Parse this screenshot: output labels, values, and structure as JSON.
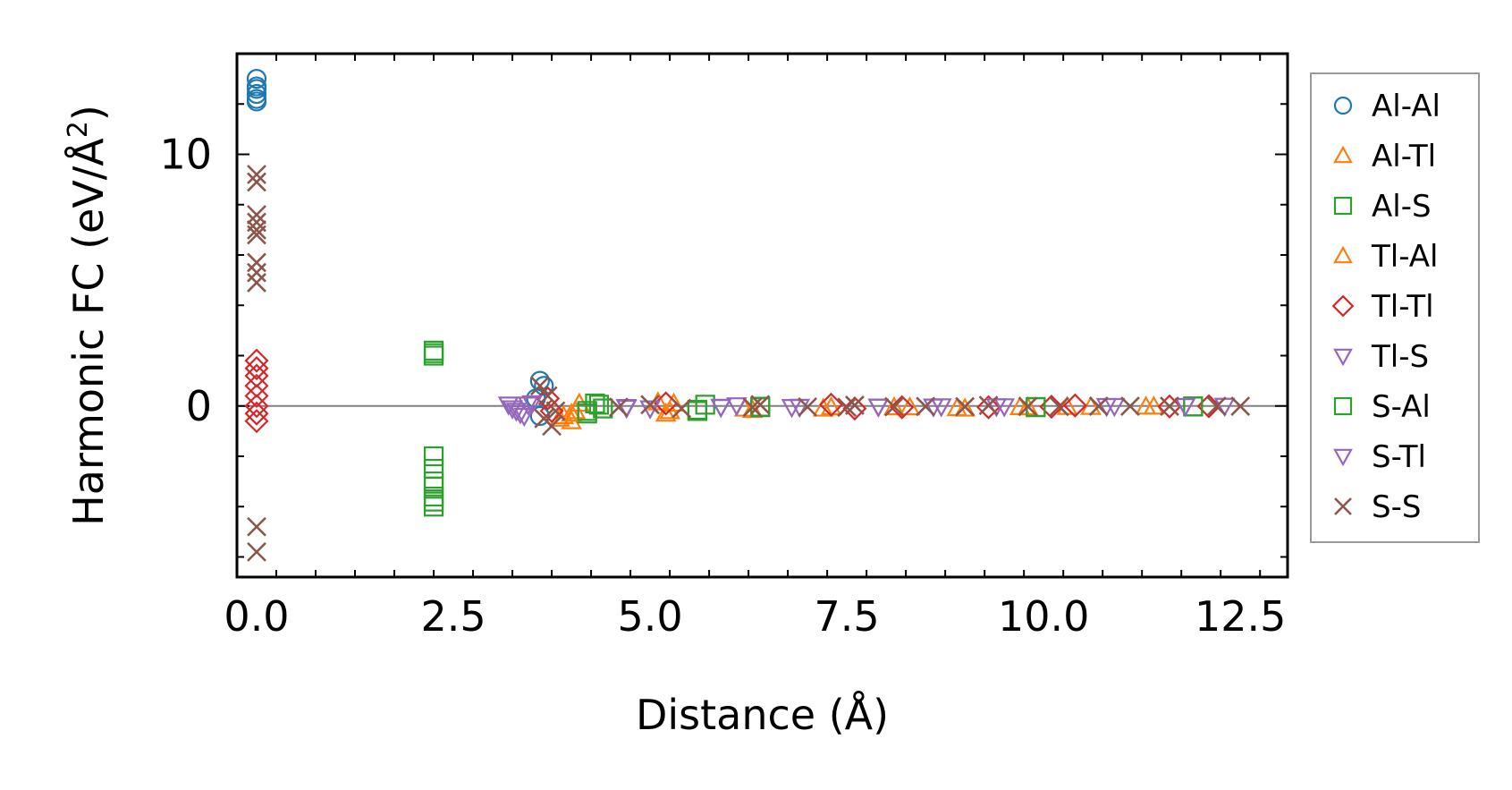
{
  "chart_data": {
    "type": "scatter",
    "xlabel": "Distance (Å)",
    "ylabel_main": "Harmonic FC (eV/Å",
    "ylabel_sup": "2",
    "ylabel_end": ")",
    "xlim": [
      -0.25,
      13.1
    ],
    "ylim": [
      -6.8,
      14.0
    ],
    "x_ticks": [
      0.0,
      2.5,
      5.0,
      7.5,
      10.0,
      12.5
    ],
    "x_tick_labels": [
      "0.0",
      "2.5",
      "5.0",
      "7.5",
      "10.0",
      "12.5"
    ],
    "y_ticks": [
      0,
      10
    ],
    "y_tick_labels": [
      "0",
      "10"
    ],
    "zero_line": true,
    "legend_position": "right",
    "series": [
      {
        "name": "Al-Al",
        "marker": "circle",
        "color": "#1f77b4",
        "x": [
          0,
          0,
          0,
          0,
          0,
          0,
          3.6,
          3.65,
          3.55,
          3.6
        ],
        "y": [
          13.0,
          12.7,
          12.4,
          12.1,
          12.2,
          12.6,
          1.0,
          0.8,
          0.3,
          -0.4
        ]
      },
      {
        "name": "Al-Tl",
        "marker": "triangle-up",
        "color": "#ff7f0e",
        "x": [
          3.9,
          4.0,
          4.05,
          4.1,
          5.2,
          5.3,
          6.3,
          7.2,
          8.3,
          9.0,
          9.8,
          10.6,
          11.3
        ],
        "y": [
          -0.4,
          -0.6,
          -0.2,
          0.1,
          -0.3,
          0.1,
          -0.15,
          -0.1,
          -0.05,
          -0.1,
          -0.05,
          -0.03,
          -0.02
        ]
      },
      {
        "name": "Al-S",
        "marker": "square",
        "color": "#2ca02c",
        "x": [
          2.25,
          2.25,
          2.25,
          2.25,
          2.25,
          2.25,
          2.25,
          4.2,
          4.3,
          4.4,
          5.6,
          5.7,
          6.4,
          9.9,
          11.9
        ],
        "y": [
          2.2,
          2.0,
          -2.0,
          -2.5,
          -3.0,
          -3.6,
          -4.0,
          -0.3,
          0.1,
          -0.1,
          -0.2,
          0.05,
          -0.05,
          -0.05,
          -0.02
        ]
      },
      {
        "name": "Tl-Al",
        "marker": "triangle-up",
        "color": "#ff7f0e",
        "x": [
          3.85,
          4.0,
          5.1,
          5.25,
          6.2,
          7.3,
          8.1,
          8.9,
          9.7,
          10.3,
          11.4
        ],
        "y": [
          -0.5,
          -0.3,
          0.15,
          -0.2,
          -0.1,
          -0.05,
          -0.05,
          -0.08,
          -0.04,
          -0.03,
          -0.02
        ]
      },
      {
        "name": "Tl-Tl",
        "marker": "diamond",
        "color": "#d62728",
        "x": [
          0,
          0,
          0,
          0,
          0,
          0,
          0,
          0,
          3.7,
          3.75,
          5.2,
          7.3,
          7.6,
          8.2,
          9.3,
          10.1,
          10.4,
          11.6,
          12.1
        ],
        "y": [
          1.8,
          1.5,
          1.2,
          0.8,
          0.4,
          0.0,
          -0.3,
          -0.6,
          0.3,
          -0.2,
          0.1,
          0.05,
          -0.1,
          -0.05,
          -0.05,
          -0.03,
          0.02,
          -0.02,
          -0.01
        ]
      },
      {
        "name": "Tl-S",
        "marker": "triangle-down",
        "color": "#9467bd",
        "x": [
          3.2,
          3.3,
          3.4,
          3.5,
          4.7,
          5.0,
          5.9,
          6.1,
          6.8,
          7.9,
          8.6,
          9.4,
          10.8,
          11.8,
          12.3
        ],
        "y": [
          0.05,
          -0.2,
          -0.4,
          0.1,
          -0.05,
          -0.1,
          -0.05,
          0.02,
          -0.05,
          -0.03,
          -0.03,
          -0.02,
          -0.01,
          -0.01,
          0.0
        ]
      },
      {
        "name": "S-Al",
        "marker": "square",
        "color": "#2ca02c",
        "x": [
          2.25,
          2.25,
          2.25,
          4.2,
          4.35,
          5.6,
          6.4,
          9.9,
          11.9
        ],
        "y": [
          2.1,
          -3.2,
          -3.8,
          -0.2,
          0.05,
          -0.15,
          -0.03,
          -0.04,
          -0.02
        ]
      },
      {
        "name": "S-Tl",
        "marker": "triangle-down",
        "color": "#9467bd",
        "x": [
          3.25,
          3.35,
          3.45,
          4.7,
          5.9,
          6.9,
          7.9,
          8.7,
          9.5,
          10.9,
          11.8
        ],
        "y": [
          -0.1,
          -0.3,
          0.05,
          -0.08,
          -0.04,
          -0.04,
          -0.03,
          -0.02,
          -0.02,
          -0.01,
          -0.01
        ]
      },
      {
        "name": "S-S",
        "marker": "x",
        "color": "#8c564b",
        "x": [
          0,
          0,
          0,
          0,
          0,
          0,
          0,
          0,
          0,
          0,
          0,
          3.6,
          3.7,
          3.8,
          3.65,
          3.75,
          4.6,
          5.0,
          5.4,
          6.3,
          6.4,
          7.0,
          7.5,
          7.6,
          8.1,
          8.5,
          9.0,
          9.3,
          9.8,
          10.2,
          10.7,
          11.1,
          11.6,
          12.2,
          12.5
        ],
        "y": [
          9.2,
          8.9,
          7.6,
          7.3,
          7.0,
          6.8,
          5.7,
          5.3,
          4.9,
          -4.8,
          -5.8,
          0.8,
          0.4,
          -0.2,
          -0.5,
          -0.8,
          -0.05,
          0.05,
          -0.1,
          -0.05,
          0.05,
          -0.04,
          -0.05,
          0.03,
          -0.03,
          -0.02,
          -0.03,
          0.02,
          -0.02,
          -0.02,
          -0.01,
          -0.01,
          -0.01,
          -0.01,
          -0.01
        ]
      }
    ]
  }
}
